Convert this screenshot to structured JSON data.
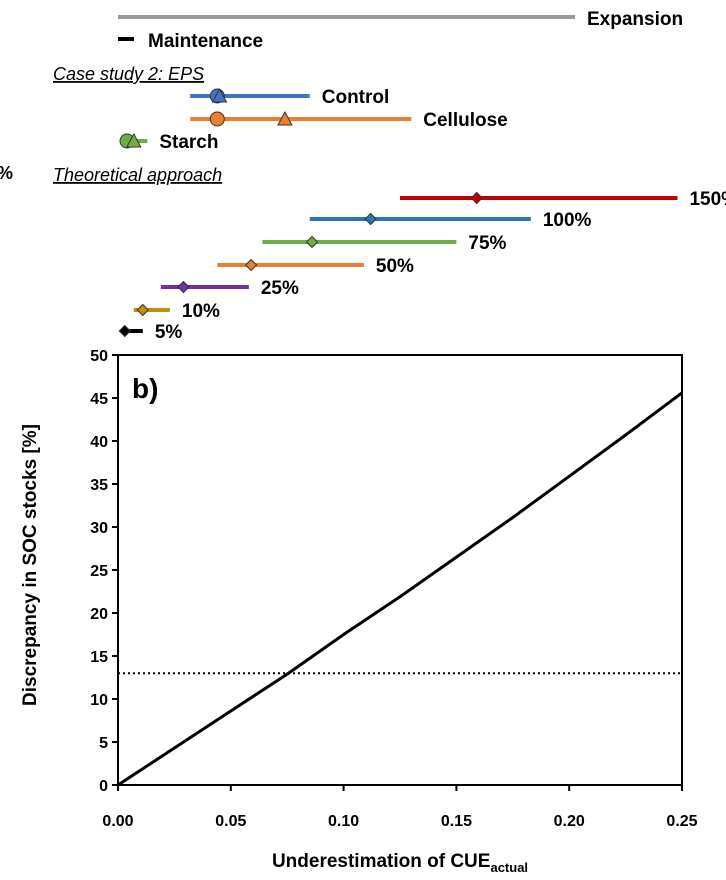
{
  "chart_data": [
    {
      "type": "range-bars",
      "legend": {
        "expansion": {
          "label": "Expansion",
          "color": "#999999"
        },
        "maintenance": {
          "label": "Maintenance",
          "color": "#000000"
        }
      },
      "sections": [
        {
          "title": "Case study 2: EPS",
          "rows": [
            {
              "label": "Control",
              "color": "#4472C4",
              "x_range": [
                0.032,
                0.085
              ],
              "circle": 0.044,
              "triangle": 0.045
            },
            {
              "label": "Cellulose",
              "color": "#ED7D31",
              "x_range": [
                0.032,
                0.13
              ],
              "circle": 0.044,
              "triangle": 0.074
            },
            {
              "label": "Starch",
              "color": "#70AD47",
              "x_range": [
                0.003,
                0.013
              ],
              "circle": 0.004,
              "triangle": 0.007
            }
          ]
        },
        {
          "title": "Theoretical approach",
          "rows": [
            {
              "label": "150%",
              "color": "#C00000",
              "x_range": [
                0.125,
                0.248
              ],
              "diamond": 0.159
            },
            {
              "label": "100%",
              "color": "#2E75B6",
              "x_range": [
                0.085,
                0.183
              ],
              "diamond": 0.112
            },
            {
              "label": "75%",
              "color": "#70AD47",
              "x_range": [
                0.064,
                0.15
              ],
              "diamond": 0.086
            },
            {
              "label": "50%",
              "color": "#ED7D31",
              "x_range": [
                0.044,
                0.109
              ],
              "diamond": 0.059
            },
            {
              "label": "25%",
              "color": "#7030A0",
              "x_range": [
                0.019,
                0.058
              ],
              "diamond": 0.029
            },
            {
              "label": "10%",
              "color": "#BF9000",
              "x_range": [
                0.007,
                0.023
              ],
              "diamond": 0.011
            },
            {
              "label": "5%",
              "color": "#000000",
              "x_range": [
                0.002,
                0.011
              ],
              "diamond": 0.003
            }
          ]
        }
      ],
      "clipped_text": "%"
    },
    {
      "type": "line",
      "panel_label": "b)",
      "xlabel": "Underestimation of CUE",
      "xlabel_sub": "actual",
      "ylabel": "Discrepancy in SOC stocks [%]",
      "xlim": [
        0,
        0.25
      ],
      "ylim": [
        0,
        50
      ],
      "xticks": [
        "0.00",
        "0.05",
        "0.10",
        "0.15",
        "0.20",
        "0.25"
      ],
      "yticks": [
        "0",
        "5",
        "10",
        "15",
        "20",
        "25",
        "30",
        "35",
        "40",
        "45",
        "50"
      ],
      "series": [
        {
          "style": "solid",
          "x": [
            0,
            0.025,
            0.05,
            0.075,
            0.1,
            0.125,
            0.15,
            0.175,
            0.2,
            0.225,
            0.25
          ],
          "y": [
            0,
            4.3,
            8.6,
            12.9,
            17.5,
            21.9,
            26.5,
            31.1,
            35.9,
            40.7,
            45.6
          ]
        }
      ],
      "reference_line": {
        "y": 13,
        "style": "dotted"
      }
    }
  ]
}
